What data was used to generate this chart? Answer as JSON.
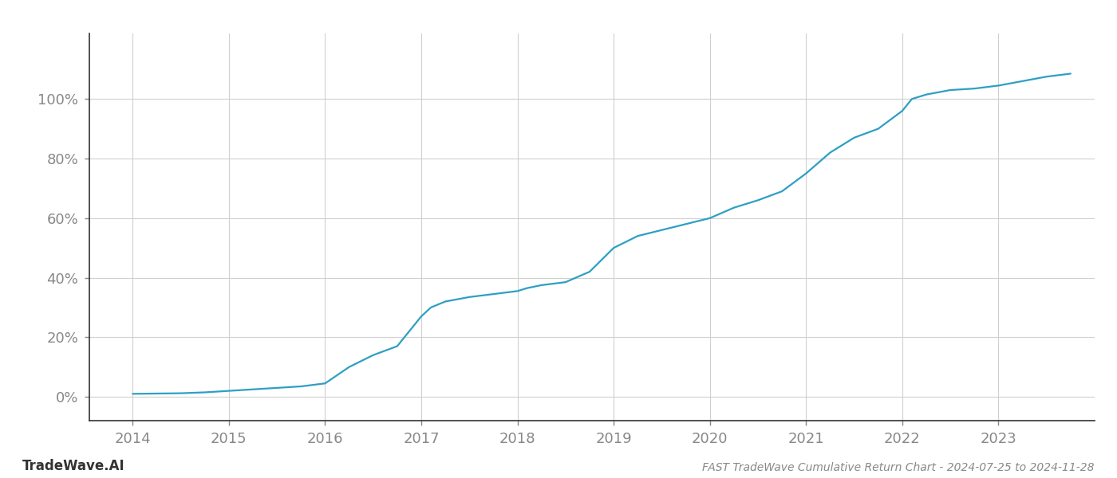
{
  "title": "FAST TradeWave Cumulative Return Chart - 2024-07-25 to 2024-11-28",
  "watermark": "TradeWave.AI",
  "line_color": "#2e9fc4",
  "background_color": "#ffffff",
  "grid_color": "#d0d0d0",
  "x_years": [
    2014.0,
    2014.25,
    2014.5,
    2014.75,
    2015.0,
    2015.25,
    2015.5,
    2015.75,
    2016.0,
    2016.25,
    2016.5,
    2016.75,
    2017.0,
    2017.1,
    2017.25,
    2017.5,
    2017.75,
    2018.0,
    2018.1,
    2018.25,
    2018.5,
    2018.75,
    2019.0,
    2019.25,
    2019.5,
    2019.75,
    2020.0,
    2020.25,
    2020.5,
    2020.75,
    2021.0,
    2021.25,
    2021.5,
    2021.75,
    2022.0,
    2022.1,
    2022.25,
    2022.5,
    2022.75,
    2023.0,
    2023.25,
    2023.5,
    2023.75
  ],
  "y_values": [
    1.0,
    1.1,
    1.2,
    1.5,
    2.0,
    2.5,
    3.0,
    3.5,
    4.5,
    10.0,
    14.0,
    17.0,
    27.0,
    30.0,
    32.0,
    33.5,
    34.5,
    35.5,
    36.5,
    37.5,
    38.5,
    42.0,
    50.0,
    54.0,
    56.0,
    58.0,
    60.0,
    63.5,
    66.0,
    69.0,
    75.0,
    82.0,
    87.0,
    90.0,
    96.0,
    100.0,
    101.5,
    103.0,
    103.5,
    104.5,
    106.0,
    107.5,
    108.5
  ],
  "xlim": [
    2013.55,
    2024.0
  ],
  "ylim": [
    -8,
    122
  ],
  "xticks": [
    2014,
    2015,
    2016,
    2017,
    2018,
    2019,
    2020,
    2021,
    2022,
    2023
  ],
  "yticks": [
    0,
    20,
    40,
    60,
    80,
    100
  ],
  "title_fontsize": 10,
  "tick_fontsize": 13,
  "watermark_fontsize": 12,
  "line_width": 1.6,
  "left_spine_color": "#333333",
  "bottom_spine_color": "#333333"
}
